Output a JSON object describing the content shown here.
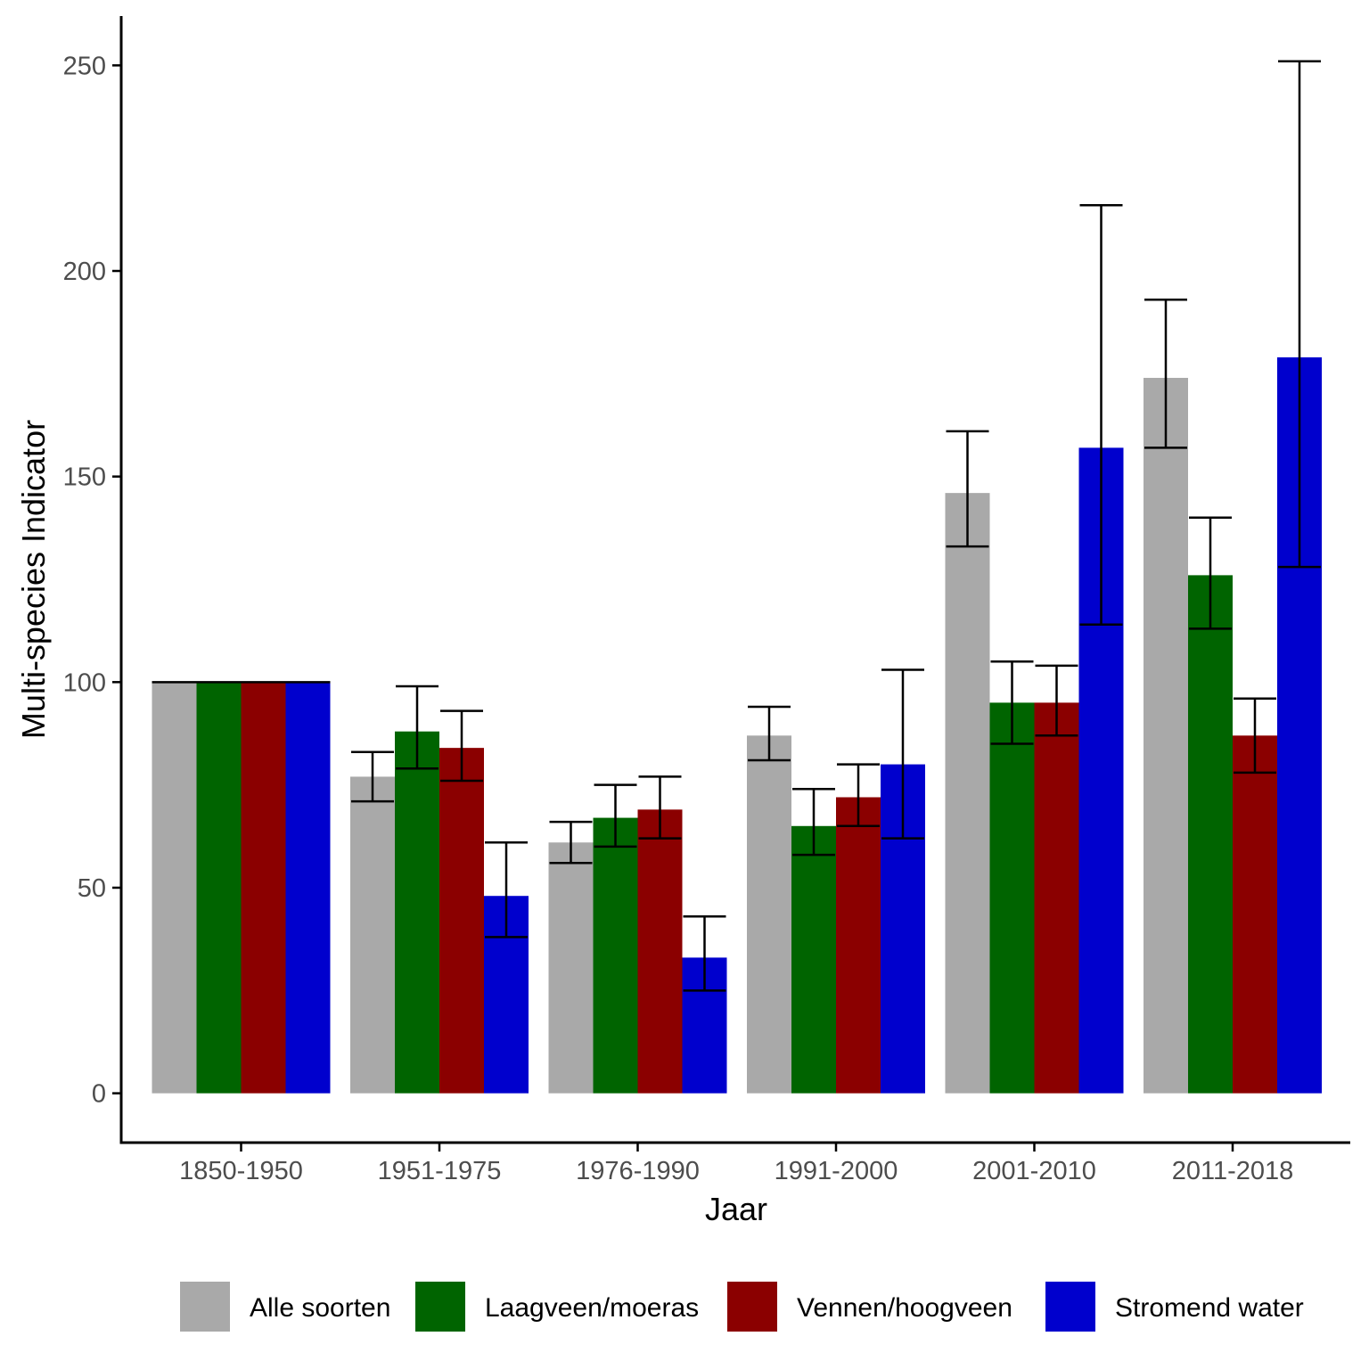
{
  "chart_data": {
    "type": "bar",
    "xlabel": "Jaar",
    "ylabel": "Multi-species Indicator",
    "ylim": [
      -12,
      262
    ],
    "yticks": [
      0,
      50,
      100,
      150,
      200,
      250
    ],
    "grid": false,
    "legend_position": "bottom",
    "categories": [
      "1850-1950",
      "1951-1975",
      "1976-1990",
      "1991-2000",
      "2001-2010",
      "2011-2018"
    ],
    "series": [
      {
        "name": "Alle soorten",
        "color": "#a9a9a9",
        "values": [
          100,
          77,
          61,
          87,
          146,
          174
        ],
        "lower": [
          null,
          71,
          56,
          81,
          133,
          157
        ],
        "upper": [
          null,
          83,
          66,
          94,
          161,
          193
        ]
      },
      {
        "name": "Laagveen/moeras",
        "color": "#006400",
        "values": [
          100,
          88,
          67,
          65,
          95,
          126
        ],
        "lower": [
          null,
          79,
          60,
          58,
          85,
          113
        ],
        "upper": [
          null,
          99,
          75,
          74,
          105,
          140
        ]
      },
      {
        "name": "Vennen/hoogveen",
        "color": "#8b0000",
        "values": [
          100,
          84,
          69,
          72,
          95,
          87
        ],
        "lower": [
          null,
          76,
          62,
          65,
          87,
          78
        ],
        "upper": [
          null,
          93,
          77,
          80,
          104,
          96
        ]
      },
      {
        "name": "Stromend water",
        "color": "#0000cd",
        "values": [
          100,
          48,
          33,
          80,
          157,
          179
        ],
        "lower": [
          null,
          38,
          25,
          62,
          114,
          128
        ],
        "upper": [
          null,
          61,
          43,
          103,
          216,
          251
        ]
      }
    ]
  }
}
